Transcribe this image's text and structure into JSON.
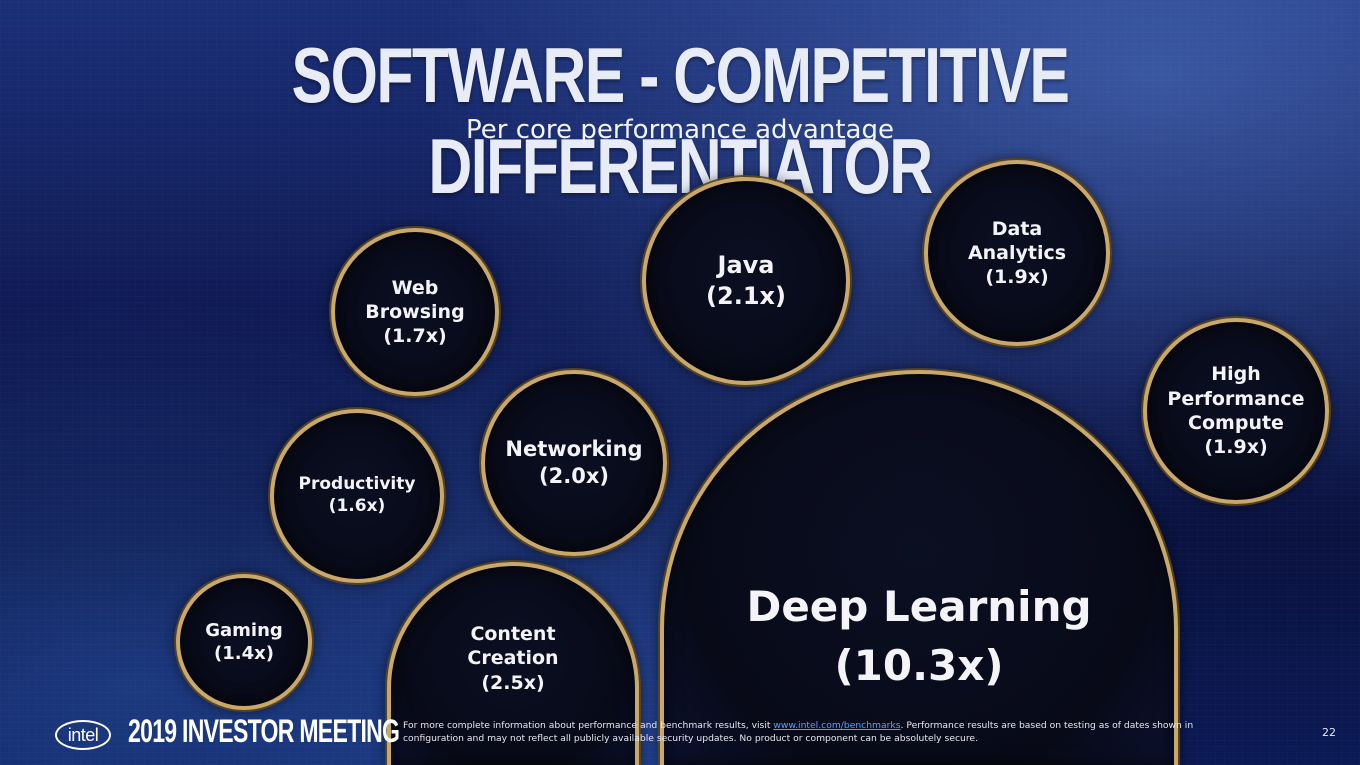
{
  "title": "SOFTWARE - COMPETITIVE DIFFERENTIATOR",
  "subtitle": "Per core performance advantage",
  "bubbles": {
    "web_browsing": {
      "label": "Web Browsing",
      "value": "(1.7x)"
    },
    "java": {
      "label": "Java",
      "value": "(2.1x)"
    },
    "data_analytics": {
      "label": "Data Analytics",
      "value": "(1.9x)"
    },
    "hpc": {
      "label": "High Performance Compute",
      "value": "(1.9x)"
    },
    "networking": {
      "label": "Networking",
      "value": "(2.0x)"
    },
    "productivity": {
      "label": "Productivity",
      "value": "(1.6x)"
    },
    "gaming": {
      "label": "Gaming",
      "value": "(1.4x)"
    },
    "content_creation": {
      "label": "Content Creation",
      "value": "(2.5x)"
    },
    "deep_learning": {
      "label": "Deep Learning",
      "value": "(10.3x)"
    }
  },
  "footer": {
    "logo_text": "intel",
    "event": "2019 INVESTOR MEETING",
    "disclaimer_pre": "For more complete information about performance and benchmark results, visit ",
    "disclaimer_link": "www.intel.com/benchmarks",
    "disclaimer_post": ". Performance results are based on testing as of dates shown in configuration and may not reflect all publicly available security updates.  No product or component can be absolutely secure.",
    "page_number": "22"
  }
}
